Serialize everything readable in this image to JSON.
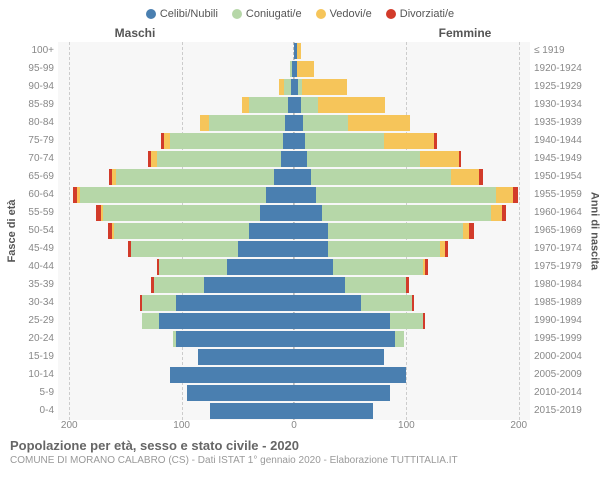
{
  "type": "population-pyramid",
  "legend": [
    {
      "label": "Celibi/Nubili",
      "color": "#4a7fb0"
    },
    {
      "label": "Coniugati/e",
      "color": "#b6d7a8"
    },
    {
      "label": "Vedovi/e",
      "color": "#f6c55a"
    },
    {
      "label": "Divorziati/e",
      "color": "#d23b2a"
    }
  ],
  "header_left": "Maschi",
  "header_right": "Femmine",
  "axis_left_title": "Fasce di età",
  "axis_right_title": "Anni di nascita",
  "age_labels": [
    "100+",
    "95-99",
    "90-94",
    "85-89",
    "80-84",
    "75-79",
    "70-74",
    "65-69",
    "60-64",
    "55-59",
    "50-54",
    "45-49",
    "40-44",
    "35-39",
    "30-34",
    "25-29",
    "20-24",
    "15-19",
    "10-14",
    "5-9",
    "0-4"
  ],
  "year_labels": [
    "≤ 1919",
    "1920-1924",
    "1925-1929",
    "1930-1934",
    "1935-1939",
    "1940-1944",
    "1945-1949",
    "1950-1954",
    "1955-1959",
    "1960-1964",
    "1965-1969",
    "1970-1974",
    "1975-1979",
    "1980-1984",
    "1985-1989",
    "1990-1994",
    "1995-1999",
    "2000-2004",
    "2005-2009",
    "2010-2014",
    "2015-2019"
  ],
  "x_ticks": [
    200,
    100,
    0,
    100,
    200
  ],
  "x_max": 210,
  "colors": {
    "bg": "#f7f7f7",
    "grid": "#cccccc",
    "center": "#bbbbbb"
  },
  "series_order": [
    "celibi",
    "coniugati",
    "vedovi",
    "divorziati"
  ],
  "series_colors": {
    "celibi": "#4a7fb0",
    "coniugati": "#b6d7a8",
    "vedovi": "#f6c55a",
    "divorziati": "#d23b2a"
  },
  "data": [
    {
      "m": {
        "celibi": 0,
        "coniugati": 0,
        "vedovi": 0,
        "divorziati": 0
      },
      "f": {
        "celibi": 3,
        "coniugati": 0,
        "vedovi": 3,
        "divorziati": 0
      }
    },
    {
      "m": {
        "celibi": 2,
        "coniugati": 2,
        "vedovi": 0,
        "divorziati": 0
      },
      "f": {
        "celibi": 3,
        "coniugati": 0,
        "vedovi": 15,
        "divorziati": 0
      }
    },
    {
      "m": {
        "celibi": 3,
        "coniugati": 6,
        "vedovi": 4,
        "divorziati": 0
      },
      "f": {
        "celibi": 4,
        "coniugati": 3,
        "vedovi": 40,
        "divorziati": 0
      }
    },
    {
      "m": {
        "celibi": 5,
        "coniugati": 35,
        "vedovi": 6,
        "divorziati": 0
      },
      "f": {
        "celibi": 6,
        "coniugati": 15,
        "vedovi": 60,
        "divorziati": 0
      }
    },
    {
      "m": {
        "celibi": 8,
        "coniugati": 68,
        "vedovi": 8,
        "divorziati": 0
      },
      "f": {
        "celibi": 8,
        "coniugati": 40,
        "vedovi": 55,
        "divorziati": 0
      }
    },
    {
      "m": {
        "celibi": 10,
        "coniugati": 100,
        "vedovi": 6,
        "divorziati": 2
      },
      "f": {
        "celibi": 10,
        "coniugati": 70,
        "vedovi": 45,
        "divorziati": 2
      }
    },
    {
      "m": {
        "celibi": 12,
        "coniugati": 110,
        "vedovi": 5,
        "divorziati": 3
      },
      "f": {
        "celibi": 12,
        "coniugati": 100,
        "vedovi": 35,
        "divorziati": 2
      }
    },
    {
      "m": {
        "celibi": 18,
        "coniugati": 140,
        "vedovi": 4,
        "divorziati": 3
      },
      "f": {
        "celibi": 15,
        "coniugati": 125,
        "vedovi": 25,
        "divorziati": 3
      }
    },
    {
      "m": {
        "celibi": 25,
        "coniugati": 165,
        "vedovi": 3,
        "divorziati": 4
      },
      "f": {
        "celibi": 20,
        "coniugati": 160,
        "vedovi": 15,
        "divorziati": 4
      }
    },
    {
      "m": {
        "celibi": 30,
        "coniugati": 140,
        "vedovi": 2,
        "divorziati": 4
      },
      "f": {
        "celibi": 25,
        "coniugati": 150,
        "vedovi": 10,
        "divorziati": 4
      }
    },
    {
      "m": {
        "celibi": 40,
        "coniugati": 120,
        "vedovi": 2,
        "divorziati": 4
      },
      "f": {
        "celibi": 30,
        "coniugati": 120,
        "vedovi": 6,
        "divorziati": 4
      }
    },
    {
      "m": {
        "celibi": 50,
        "coniugati": 95,
        "vedovi": 0,
        "divorziati": 3
      },
      "f": {
        "celibi": 30,
        "coniugati": 100,
        "vedovi": 4,
        "divorziati": 3
      }
    },
    {
      "m": {
        "celibi": 60,
        "coniugati": 60,
        "vedovi": 0,
        "divorziati": 2
      },
      "f": {
        "celibi": 35,
        "coniugati": 80,
        "vedovi": 2,
        "divorziati": 2
      }
    },
    {
      "m": {
        "celibi": 80,
        "coniugati": 45,
        "vedovi": 0,
        "divorziati": 2
      },
      "f": {
        "celibi": 45,
        "coniugati": 55,
        "vedovi": 0,
        "divorziati": 2
      }
    },
    {
      "m": {
        "celibi": 105,
        "coniugati": 30,
        "vedovi": 0,
        "divorziati": 2
      },
      "f": {
        "celibi": 60,
        "coniugati": 45,
        "vedovi": 0,
        "divorziati": 2
      }
    },
    {
      "m": {
        "celibi": 120,
        "coniugati": 15,
        "vedovi": 0,
        "divorziati": 0
      },
      "f": {
        "celibi": 85,
        "coniugati": 30,
        "vedovi": 0,
        "divorziati": 2
      }
    },
    {
      "m": {
        "celibi": 105,
        "coniugati": 3,
        "vedovi": 0,
        "divorziati": 0
      },
      "f": {
        "celibi": 90,
        "coniugati": 8,
        "vedovi": 0,
        "divorziati": 0
      }
    },
    {
      "m": {
        "celibi": 85,
        "coniugati": 0,
        "vedovi": 0,
        "divorziati": 0
      },
      "f": {
        "celibi": 80,
        "coniugati": 0,
        "vedovi": 0,
        "divorziati": 0
      }
    },
    {
      "m": {
        "celibi": 110,
        "coniugati": 0,
        "vedovi": 0,
        "divorziati": 0
      },
      "f": {
        "celibi": 100,
        "coniugati": 0,
        "vedovi": 0,
        "divorziati": 0
      }
    },
    {
      "m": {
        "celibi": 95,
        "coniugati": 0,
        "vedovi": 0,
        "divorziati": 0
      },
      "f": {
        "celibi": 85,
        "coniugati": 0,
        "vedovi": 0,
        "divorziati": 0
      }
    },
    {
      "m": {
        "celibi": 75,
        "coniugati": 0,
        "vedovi": 0,
        "divorziati": 0
      },
      "f": {
        "celibi": 70,
        "coniugati": 0,
        "vedovi": 0,
        "divorziati": 0
      }
    }
  ],
  "title": "Popolazione per età, sesso e stato civile - 2020",
  "subtitle": "COMUNE DI MORANO CALABRO (CS) - Dati ISTAT 1° gennaio 2020 - Elaborazione TUTTITALIA.IT",
  "bar_gap_pct": 10,
  "label_fontsize": 10,
  "title_fontsize": 13
}
